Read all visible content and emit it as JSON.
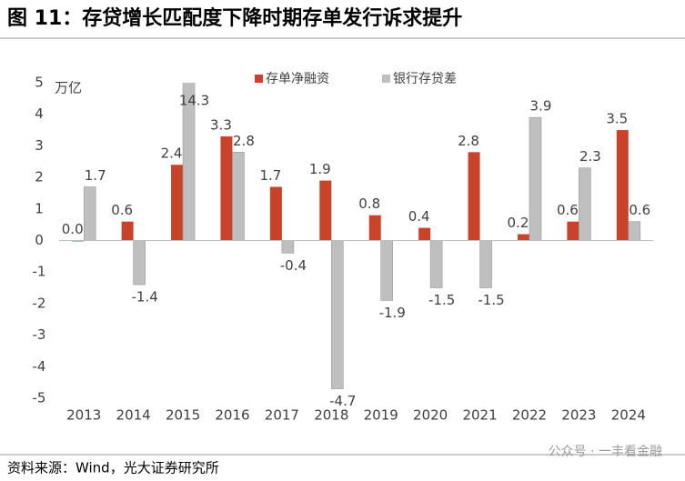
{
  "chart_data": {
    "type": "bar",
    "title": "图 11：存贷增长匹配度下降时期存单发行诉求提升",
    "y_unit": "万亿",
    "categories": [
      "2013",
      "2014",
      "2015",
      "2016",
      "2017",
      "2018",
      "2019",
      "2020",
      "2021",
      "2022",
      "2023",
      "2024"
    ],
    "series": [
      {
        "name": "存单净融资",
        "color": "#c9432b",
        "label_color": "#c9432b",
        "values": [
          0.0,
          0.6,
          2.4,
          3.3,
          1.7,
          1.9,
          0.8,
          0.4,
          2.8,
          0.2,
          0.6,
          3.5
        ],
        "value_labels": [
          "0.0",
          "0.6",
          "2.4",
          "3.3",
          "1.7",
          "1.9",
          "0.8",
          "0.4",
          "2.8",
          "0.2",
          "0.6",
          "3.5"
        ]
      },
      {
        "name": "银行存贷差",
        "color": "#bfbfbf",
        "label_color": "#404040",
        "values": [
          1.7,
          -1.4,
          14.3,
          2.8,
          -0.4,
          -4.7,
          -1.9,
          -1.5,
          -1.5,
          3.9,
          2.3,
          0.6
        ],
        "value_labels": [
          "1.7",
          "-1.4",
          "14.3",
          "2.8",
          "-0.4",
          "-4.7",
          "-1.9",
          "-1.5",
          "-1.5",
          "3.9",
          "2.3",
          "0.6"
        ]
      }
    ],
    "ylim": [
      -5,
      5
    ],
    "yticks": [
      -5,
      -4,
      -3,
      -2,
      -1,
      0,
      1,
      2,
      3,
      4,
      5
    ],
    "source": "资料来源：Wind，光大证券研究所",
    "watermark": "公众号 · 一丰看金融"
  }
}
